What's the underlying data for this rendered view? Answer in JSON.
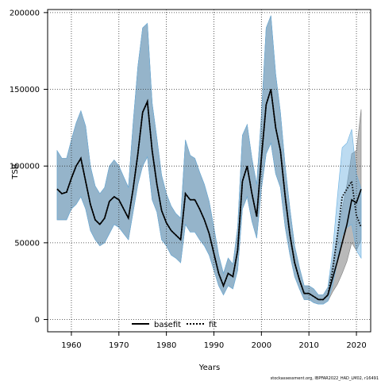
{
  "chart_data": {
    "type": "line",
    "title": "",
    "xlabel": "Years",
    "ylabel": "TSB",
    "xlim": [
      1955,
      2023
    ],
    "ylim": [
      -8000,
      202000
    ],
    "xticks": [
      1960,
      1970,
      1980,
      1990,
      2000,
      2010,
      2020
    ],
    "yticks": [
      0,
      50000,
      100000,
      150000,
      200000
    ],
    "grid": true,
    "legend_position": "bottom-center",
    "footnote": "stockassessment.org, IBPFAR2022_HAD_LM02, r16491",
    "x": [
      1957,
      1958,
      1959,
      1960,
      1961,
      1962,
      1963,
      1964,
      1965,
      1966,
      1967,
      1968,
      1969,
      1970,
      1971,
      1972,
      1973,
      1974,
      1975,
      1976,
      1977,
      1978,
      1979,
      1980,
      1981,
      1982,
      1983,
      1984,
      1985,
      1986,
      1987,
      1988,
      1989,
      1990,
      1991,
      1992,
      1993,
      1994,
      1995,
      1996,
      1997,
      1998,
      1999,
      2000,
      2001,
      2002,
      2003,
      2004,
      2005,
      2006,
      2007,
      2008,
      2009,
      2010,
      2011,
      2012,
      2013,
      2014,
      2015,
      2016,
      2017,
      2018,
      2019,
      2020,
      2021
    ],
    "series": [
      {
        "name": "basefit",
        "style": "solid",
        "color": "#000000",
        "band_color": "#808080",
        "values": [
          85000,
          82000,
          83000,
          92000,
          100000,
          105000,
          90000,
          75000,
          65000,
          62000,
          66000,
          77000,
          80000,
          78000,
          72000,
          66000,
          85000,
          108000,
          135000,
          142000,
          110000,
          88000,
          71000,
          63000,
          58000,
          55000,
          52000,
          82000,
          78000,
          78000,
          72000,
          65000,
          56000,
          43000,
          30000,
          22000,
          30000,
          28000,
          45000,
          90000,
          100000,
          82000,
          67000,
          105000,
          140000,
          150000,
          125000,
          110000,
          80000,
          55000,
          37000,
          26000,
          17000,
          17000,
          15000,
          13000,
          13000,
          16000,
          27000,
          38000,
          50000,
          62000,
          78000,
          76000,
          85000
        ],
        "lower": [
          65000,
          65000,
          65000,
          72000,
          75000,
          80000,
          72000,
          58000,
          52000,
          48000,
          50000,
          56000,
          62000,
          60000,
          56000,
          52000,
          70000,
          88000,
          100000,
          106000,
          78000,
          70000,
          52000,
          48000,
          42000,
          40000,
          37000,
          62000,
          57000,
          57000,
          52000,
          48000,
          42000,
          32000,
          22000,
          16000,
          22000,
          20000,
          32000,
          72000,
          80000,
          64000,
          53000,
          85000,
          108000,
          115000,
          95000,
          86000,
          60000,
          42000,
          28000,
          20000,
          13000,
          13000,
          11000,
          10000,
          10000,
          12000,
          18000,
          23000,
          30000,
          38000,
          50000,
          45000,
          52000
        ],
        "upper": [
          110000,
          105000,
          105000,
          117000,
          128000,
          136000,
          126000,
          100000,
          87000,
          82000,
          86000,
          100000,
          104000,
          100000,
          93000,
          86000,
          128000,
          165000,
          190000,
          193000,
          141000,
          118000,
          94000,
          82000,
          74000,
          69000,
          66000,
          117000,
          107000,
          105000,
          96000,
          88000,
          77000,
          60000,
          42000,
          30000,
          40000,
          36000,
          60000,
          120000,
          127000,
          105000,
          88000,
          133000,
          190000,
          198000,
          160000,
          135000,
          100000,
          72000,
          48000,
          34000,
          22000,
          22000,
          20000,
          16000,
          16000,
          21000,
          37000,
          55000,
          72000,
          88000,
          108000,
          110000,
          137000
        ]
      },
      {
        "name": "fit",
        "style": "dotted",
        "color": "#000000",
        "band_color": "#6ab0e0",
        "values": [
          85000,
          82000,
          83000,
          92000,
          100000,
          105000,
          90000,
          75000,
          65000,
          62000,
          66000,
          77000,
          80000,
          78000,
          72000,
          66000,
          85000,
          108000,
          135000,
          142000,
          110000,
          88000,
          71000,
          63000,
          58000,
          55000,
          52000,
          82000,
          78000,
          78000,
          72000,
          65000,
          56000,
          43000,
          30000,
          22000,
          30000,
          28000,
          45000,
          90000,
          100000,
          82000,
          67000,
          105000,
          140000,
          150000,
          125000,
          110000,
          80000,
          55000,
          37000,
          26000,
          17000,
          17000,
          15000,
          13000,
          13000,
          16000,
          32000,
          55000,
          80000,
          85000,
          90000,
          68000,
          60000
        ],
        "lower": [
          65000,
          65000,
          65000,
          72000,
          75000,
          80000,
          72000,
          58000,
          52000,
          48000,
          50000,
          56000,
          62000,
          60000,
          56000,
          52000,
          70000,
          88000,
          100000,
          106000,
          78000,
          70000,
          52000,
          48000,
          42000,
          40000,
          37000,
          62000,
          57000,
          57000,
          52000,
          48000,
          42000,
          32000,
          22000,
          16000,
          22000,
          20000,
          32000,
          72000,
          80000,
          64000,
          53000,
          85000,
          108000,
          115000,
          95000,
          86000,
          60000,
          42000,
          28000,
          20000,
          13000,
          13000,
          11000,
          10000,
          10000,
          12000,
          22000,
          38000,
          55000,
          60000,
          62000,
          45000,
          40000
        ],
        "upper": [
          110000,
          105000,
          105000,
          117000,
          128000,
          136000,
          126000,
          100000,
          87000,
          82000,
          86000,
          100000,
          104000,
          100000,
          93000,
          86000,
          128000,
          165000,
          190000,
          193000,
          141000,
          118000,
          94000,
          82000,
          74000,
          69000,
          66000,
          117000,
          107000,
          105000,
          96000,
          88000,
          77000,
          60000,
          42000,
          30000,
          40000,
          36000,
          60000,
          120000,
          127000,
          105000,
          88000,
          133000,
          190000,
          198000,
          160000,
          135000,
          100000,
          72000,
          48000,
          34000,
          22000,
          22000,
          20000,
          16000,
          16000,
          21000,
          45000,
          80000,
          112000,
          115000,
          124000,
          95000,
          85000
        ]
      }
    ]
  }
}
